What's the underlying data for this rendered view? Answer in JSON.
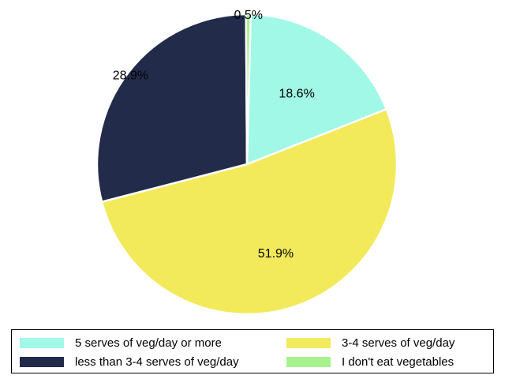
{
  "chart_data": {
    "type": "pie",
    "title": "",
    "slices": [
      {
        "label": "5 serves of veg/day or more",
        "value": 18.6,
        "value_label": "18.6%",
        "color": "#a1f8e6"
      },
      {
        "label": "3-4 serves of veg/day",
        "value": 51.9,
        "value_label": "51.9%",
        "color": "#f2ea5b"
      },
      {
        "label": "less than 3-4 serves of veg/day",
        "value": 28.9,
        "value_label": "28.9%",
        "color": "#232b4b"
      },
      {
        "label": "I don't eat vegetables",
        "value": 0.5,
        "value_label": "0.5%",
        "color": "#a8f28e"
      }
    ],
    "start_angle": "top",
    "direction": "clockwise",
    "legend_position": "bottom"
  }
}
